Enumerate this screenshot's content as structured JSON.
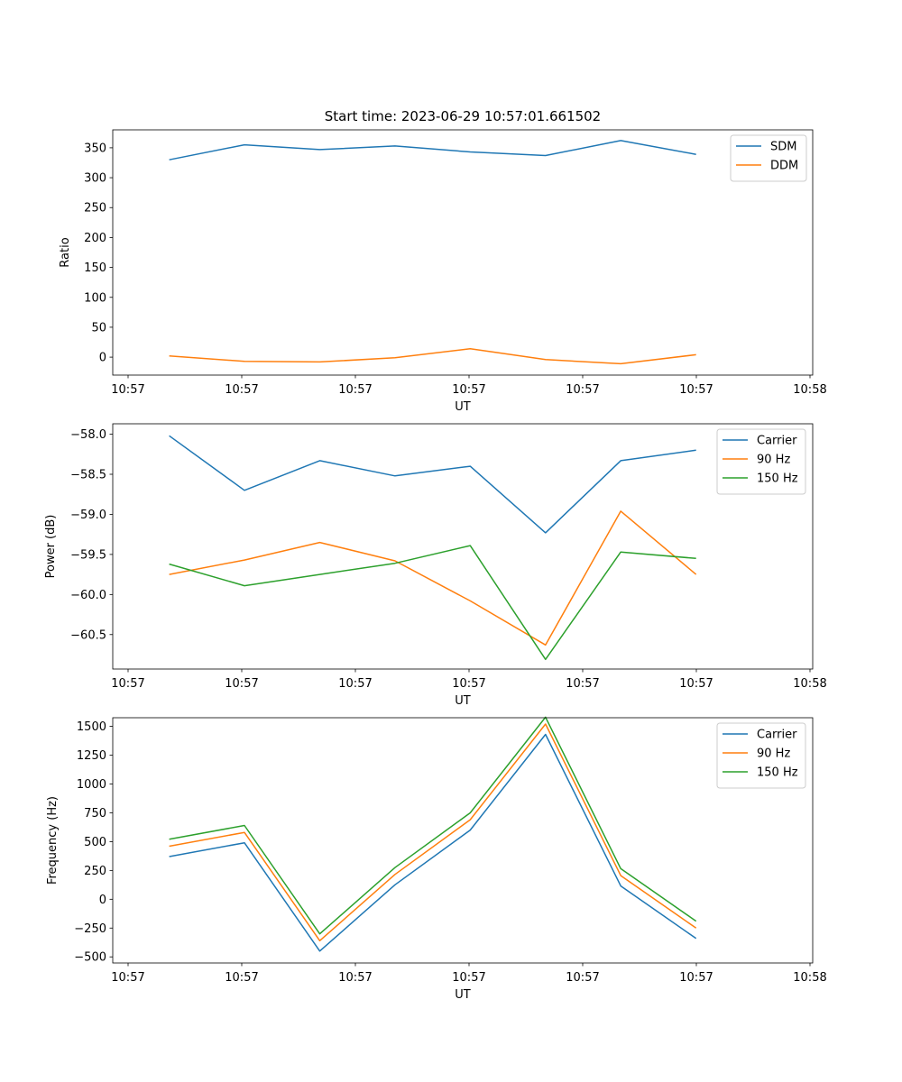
{
  "figure": {
    "title": "Start time: 2023-06-29 10:57:01.661502"
  },
  "chart_data": [
    {
      "type": "line",
      "title": "",
      "xlabel": "UT",
      "ylabel": "Ratio",
      "x_tick_labels": [
        "10:57",
        "10:57",
        "10:57",
        "10:57",
        "10:57",
        "10:57",
        "10:58"
      ],
      "y_ticks": [
        0,
        50,
        100,
        150,
        200,
        250,
        300,
        350
      ],
      "y_tick_labels": [
        "0",
        "50",
        "100",
        "150",
        "200",
        "250",
        "300",
        "350"
      ],
      "xlim": [
        0,
        9.3
      ],
      "ylim": [
        -30,
        380
      ],
      "legend": "top-right",
      "grid": false,
      "x": [
        0.75,
        1.75,
        2.75,
        3.75,
        4.75,
        5.75,
        6.75,
        7.75
      ],
      "series": [
        {
          "name": "SDM",
          "color": "#1f77b4",
          "values": [
            330,
            355,
            347,
            353,
            343,
            337,
            362,
            339
          ]
        },
        {
          "name": "DDM",
          "color": "#ff7f0e",
          "values": [
            2,
            -7,
            -8,
            -1,
            14,
            -4,
            -11,
            4
          ]
        }
      ]
    },
    {
      "type": "line",
      "title": "",
      "xlabel": "UT",
      "ylabel": "Power (dB)",
      "x_tick_labels": [
        "10:57",
        "10:57",
        "10:57",
        "10:57",
        "10:57",
        "10:57",
        "10:58"
      ],
      "y_ticks": [
        -60.5,
        -60.0,
        -59.5,
        -59.0,
        -58.5,
        -58.0
      ],
      "y_tick_labels": [
        "−60.5",
        "−60.0",
        "−59.5",
        "−59.0",
        "−58.5",
        "−58.0"
      ],
      "xlim": [
        0,
        9.3
      ],
      "ylim": [
        -60.93,
        -57.87
      ],
      "legend": "top-right",
      "grid": false,
      "x": [
        0.75,
        1.75,
        2.75,
        3.75,
        4.75,
        5.75,
        6.75,
        7.75
      ],
      "series": [
        {
          "name": "Carrier",
          "color": "#1f77b4",
          "values": [
            -58.02,
            -58.7,
            -58.33,
            -58.52,
            -58.4,
            -59.23,
            -58.33,
            -58.2
          ]
        },
        {
          "name": "90 Hz",
          "color": "#ff7f0e",
          "values": [
            -59.75,
            -59.57,
            -59.35,
            -59.58,
            -60.08,
            -60.63,
            -58.96,
            -59.75
          ]
        },
        {
          "name": "150 Hz",
          "color": "#2ca02c",
          "values": [
            -59.62,
            -59.89,
            -59.75,
            -59.61,
            -59.39,
            -60.81,
            -59.47,
            -59.55
          ]
        }
      ]
    },
    {
      "type": "line",
      "title": "",
      "xlabel": "UT",
      "ylabel": "Frequency (Hz)",
      "x_tick_labels": [
        "10:57",
        "10:57",
        "10:57",
        "10:57",
        "10:57",
        "10:57",
        "10:58"
      ],
      "y_ticks": [
        -500,
        -250,
        0,
        250,
        500,
        750,
        1000,
        1250,
        1500
      ],
      "y_tick_labels": [
        "−500",
        "−250",
        "0",
        "250",
        "500",
        "750",
        "1000",
        "1250",
        "1500"
      ],
      "xlim": [
        0,
        9.3
      ],
      "ylim": [
        -553,
        1575
      ],
      "legend": "top-right",
      "grid": false,
      "x": [
        0.75,
        1.75,
        2.75,
        3.75,
        4.75,
        5.75,
        6.75,
        7.75
      ],
      "series": [
        {
          "name": "Carrier",
          "color": "#1f77b4",
          "values": [
            370,
            490,
            -450,
            125,
            600,
            1430,
            115,
            -340
          ]
        },
        {
          "name": "90 Hz",
          "color": "#ff7f0e",
          "values": [
            460,
            580,
            -360,
            215,
            690,
            1520,
            205,
            -250
          ]
        },
        {
          "name": "150 Hz",
          "color": "#2ca02c",
          "values": [
            520,
            640,
            -300,
            275,
            750,
            1580,
            265,
            -190
          ]
        }
      ]
    }
  ]
}
